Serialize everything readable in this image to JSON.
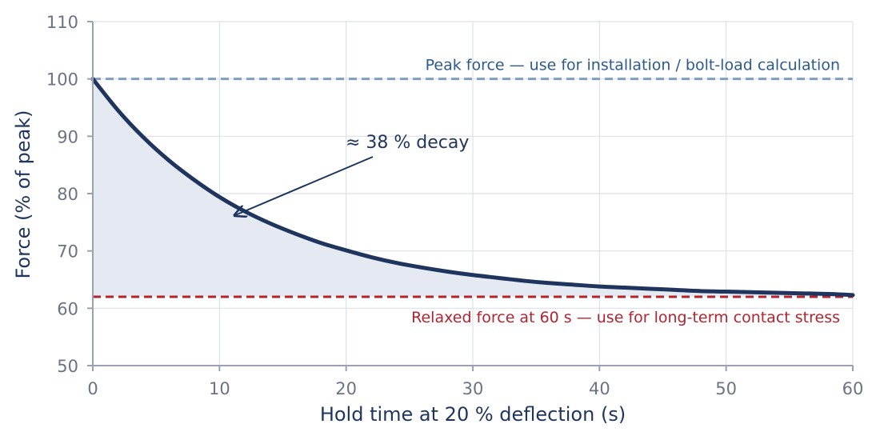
{
  "chart_data": {
    "type": "line",
    "title": "",
    "xlabel": "Hold time at 20 % deflection (s)",
    "ylabel": "Force (% of peak)",
    "xlim": [
      0,
      60
    ],
    "ylim": [
      50,
      110
    ],
    "x_ticks": [
      0,
      10,
      20,
      30,
      40,
      50,
      60
    ],
    "y_ticks": [
      50,
      60,
      70,
      80,
      90,
      100,
      110
    ],
    "x_tick_labels": [
      "0",
      "10",
      "20",
      "30",
      "40",
      "50",
      "60"
    ],
    "y_tick_labels": [
      "50",
      "60",
      "70",
      "80",
      "90",
      "100",
      "110"
    ],
    "grid": true,
    "series": [
      {
        "style": "solid",
        "color": "#1f355e",
        "fill_color": "#e5eaf2",
        "x": [
          0,
          2,
          4,
          6,
          8,
          10,
          12,
          14,
          16,
          18,
          20,
          22,
          24,
          26,
          28,
          30,
          32,
          34,
          36,
          38,
          40,
          42,
          44,
          46,
          48,
          50,
          52,
          54,
          56,
          58,
          60
        ],
        "y": [
          100,
          94.5,
          89.8,
          85.8,
          82.4,
          79.4,
          76.9,
          74.8,
          73.0,
          71.4,
          70.1,
          68.9,
          67.9,
          67.1,
          66.4,
          65.8,
          65.3,
          64.8,
          64.4,
          64.1,
          63.8,
          63.6,
          63.4,
          63.2,
          63.0,
          62.9,
          62.8,
          62.7,
          62.6,
          62.5,
          62.3
        ]
      }
    ],
    "reference_lines": [
      {
        "y": 100,
        "color": "#7f9fbf",
        "style": "dashed",
        "label": "Peak force — use for installation / bolt-load calculation",
        "label_color": "#2d5a8c"
      },
      {
        "y": 62,
        "color": "#b22430",
        "style": "dashed",
        "label": "Relaxed force at 60 s — use for long-term contact stress",
        "label_color": "#b22430"
      }
    ],
    "annotations": [
      {
        "text": "≈ 38 % decay",
        "arrow_to": [
          11.2,
          76.2
        ],
        "color": "#1f355e"
      }
    ]
  }
}
